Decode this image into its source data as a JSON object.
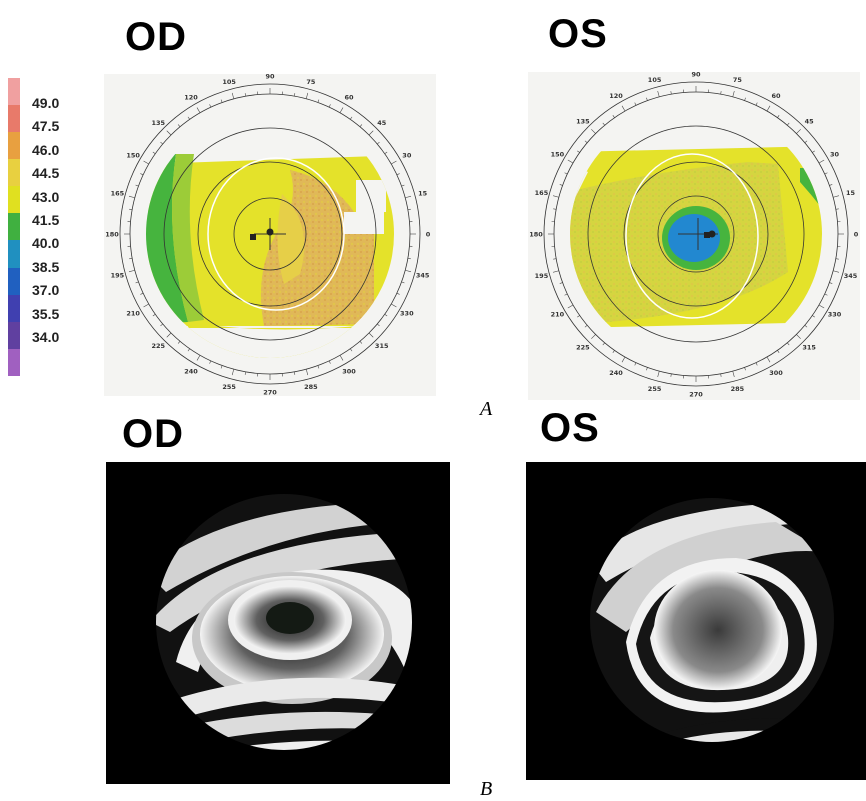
{
  "panel_a": {
    "letter": "A",
    "od_title": "OD",
    "os_title": "OS",
    "scale": {
      "labels": [
        "49.0",
        "47.5",
        "46.0",
        "44.5",
        "43.0",
        "41.5",
        "40.0",
        "38.5",
        "37.0",
        "35.5",
        "34.0"
      ],
      "colors": [
        "#f0a0a0",
        "#e87a6a",
        "#e8a040",
        "#e8d040",
        "#e0e020",
        "#40b040",
        "#2090c0",
        "#2060c0",
        "#4040b0",
        "#6040a0",
        "#a060c0"
      ]
    },
    "axis_labels": [
      "90",
      "75",
      "60",
      "45",
      "30",
      "15",
      "0",
      "345",
      "330",
      "315",
      "300",
      "285",
      "270",
      "255",
      "240",
      "225",
      "210",
      "195",
      "180",
      "165",
      "150",
      "135",
      "120",
      "105"
    ]
  },
  "panel_b": {
    "letter": "B",
    "od_title": "OD",
    "os_title": "OS"
  },
  "colors": {
    "yellow": "#e4e22a",
    "orange_mottle": "#d9a85a",
    "green": "#46b43e",
    "blue": "#2288d0",
    "ring": "#333333"
  }
}
